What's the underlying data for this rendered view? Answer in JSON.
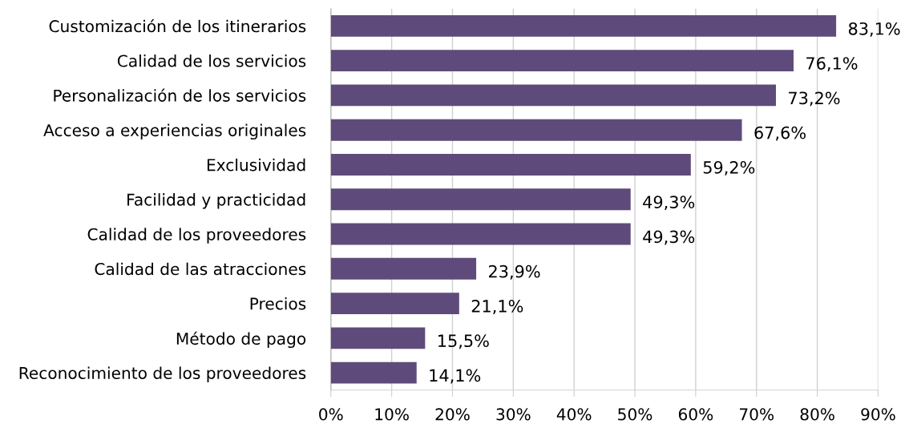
{
  "chart_data": {
    "type": "bar",
    "orientation": "horizontal",
    "categories": [
      "Customización de los itinerarios",
      "Calidad de los servicios",
      "Personalización de los servicios",
      "Acceso a experiencias originales",
      "Exclusividad",
      "Facilidad y practicidad",
      "Calidad de los proveedores",
      "Calidad de las atracciones",
      "Precios",
      "Método de pago",
      "Reconocimiento de los proveedores"
    ],
    "values": [
      83.1,
      76.1,
      73.2,
      67.6,
      59.2,
      49.3,
      49.3,
      23.9,
      21.1,
      15.5,
      14.1
    ],
    "value_labels": [
      "83,1%",
      "76,1%",
      "73,2%",
      "67,6%",
      "59,2%",
      "49,3%",
      "49,3%",
      "23,9%",
      "21,1%",
      "15,5%",
      "14,1%"
    ],
    "color": "#5f4b7b",
    "xlim": [
      0,
      90
    ],
    "xticks": [
      {
        "value": 0,
        "label": "0%"
      },
      {
        "value": 10,
        "label": "10%"
      },
      {
        "value": 20,
        "label": "20%"
      },
      {
        "value": 30,
        "label": "30%"
      },
      {
        "value": 40,
        "label": "40%"
      },
      {
        "value": 50,
        "label": "50%"
      },
      {
        "value": 60,
        "label": "60%"
      },
      {
        "value": 70,
        "label": "70%"
      },
      {
        "value": 80,
        "label": "80%"
      },
      {
        "value": 90,
        "label": "90%"
      }
    ],
    "grid": "x"
  }
}
